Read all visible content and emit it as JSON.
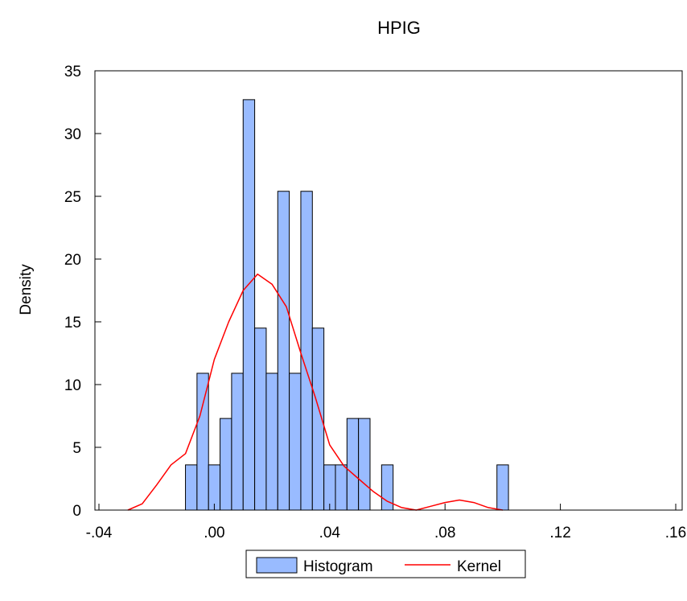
{
  "chart_data": {
    "type": "bar",
    "title": "HPIG",
    "xlabel": "",
    "ylabel": "Density",
    "xlim": [
      -0.04,
      0.16
    ],
    "ylim": [
      0,
      35
    ],
    "x_ticks": [
      -0.04,
      0.0,
      0.04,
      0.08,
      0.12,
      0.16
    ],
    "x_tick_labels": [
      "-.04",
      ".00",
      ".04",
      ".08",
      ".12",
      ".16"
    ],
    "y_ticks": [
      0,
      5,
      10,
      15,
      20,
      25,
      30,
      35
    ],
    "y_tick_labels": [
      "0",
      "5",
      "10",
      "15",
      "20",
      "25",
      "30",
      "35"
    ],
    "grid": false,
    "legend_position": "bottom-center",
    "colors": {
      "histogram_fill": "#99bbff",
      "histogram_edge": "#000000",
      "kernel": "#ff0000"
    },
    "series": [
      {
        "name": "Histogram",
        "type": "histogram",
        "bin_width": 0.004,
        "bins": [
          {
            "x0": -0.01,
            "x1": -0.006,
            "value": 3.6
          },
          {
            "x0": -0.006,
            "x1": -0.002,
            "value": 10.9
          },
          {
            "x0": -0.002,
            "x1": 0.002,
            "value": 3.6
          },
          {
            "x0": 0.002,
            "x1": 0.006,
            "value": 7.3
          },
          {
            "x0": 0.006,
            "x1": 0.01,
            "value": 10.9
          },
          {
            "x0": 0.01,
            "x1": 0.014,
            "value": 32.7
          },
          {
            "x0": 0.014,
            "x1": 0.018,
            "value": 14.5
          },
          {
            "x0": 0.018,
            "x1": 0.022,
            "value": 10.9
          },
          {
            "x0": 0.022,
            "x1": 0.026,
            "value": 25.4
          },
          {
            "x0": 0.026,
            "x1": 0.03,
            "value": 10.9
          },
          {
            "x0": 0.03,
            "x1": 0.034,
            "value": 25.4
          },
          {
            "x0": 0.034,
            "x1": 0.038,
            "value": 14.5
          },
          {
            "x0": 0.038,
            "x1": 0.042,
            "value": 3.6
          },
          {
            "x0": 0.042,
            "x1": 0.046,
            "value": 3.6
          },
          {
            "x0": 0.046,
            "x1": 0.05,
            "value": 7.3
          },
          {
            "x0": 0.05,
            "x1": 0.054,
            "value": 7.3
          },
          {
            "x0": 0.058,
            "x1": 0.062,
            "value": 3.6
          },
          {
            "x0": 0.098,
            "x1": 0.102,
            "value": 3.6
          }
        ]
      },
      {
        "name": "Kernel",
        "type": "line",
        "points": [
          [
            -0.03,
            0.0
          ],
          [
            -0.025,
            0.5
          ],
          [
            -0.02,
            2.0
          ],
          [
            -0.015,
            3.6
          ],
          [
            -0.01,
            4.5
          ],
          [
            -0.005,
            7.5
          ],
          [
            0.0,
            12.0
          ],
          [
            0.005,
            15.0
          ],
          [
            0.01,
            17.5
          ],
          [
            0.015,
            18.8
          ],
          [
            0.02,
            18.0
          ],
          [
            0.025,
            16.2
          ],
          [
            0.03,
            12.5
          ],
          [
            0.035,
            9.0
          ],
          [
            0.04,
            5.2
          ],
          [
            0.045,
            3.5
          ],
          [
            0.05,
            2.5
          ],
          [
            0.055,
            1.5
          ],
          [
            0.06,
            0.7
          ],
          [
            0.065,
            0.2
          ],
          [
            0.07,
            0.0
          ],
          [
            0.075,
            0.3
          ],
          [
            0.08,
            0.6
          ],
          [
            0.085,
            0.8
          ],
          [
            0.09,
            0.6
          ],
          [
            0.095,
            0.2
          ],
          [
            0.1,
            0.0
          ]
        ]
      }
    ]
  }
}
